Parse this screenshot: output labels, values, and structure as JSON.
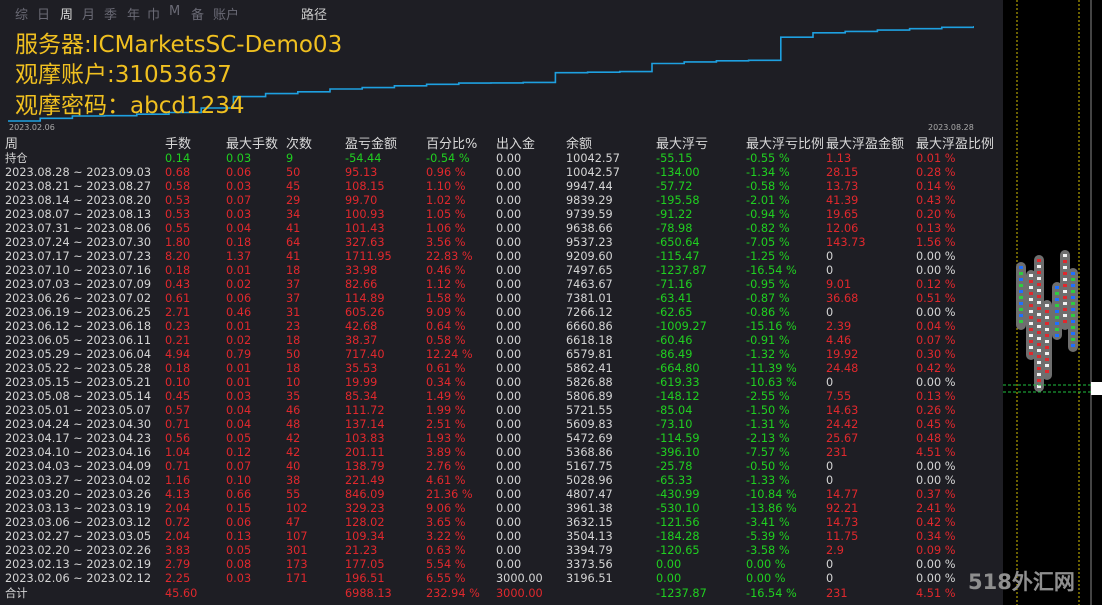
{
  "tabs": [
    "综",
    "日",
    "周",
    "月",
    "季",
    "年",
    "巾",
    "M",
    "备",
    "账户"
  ],
  "tab_active_index": 2,
  "path_label": "路径",
  "server_line": "服务器:ICMarketsSC-Demo03",
  "account_line": " 观摩账户:31053637",
  "password_line": "观摩密码：abcd1234",
  "chart_start_date": "2023.02.06",
  "chart_end_date": "2023.08.28",
  "equity_curve_color": "#1ea0e0",
  "headers": [
    "周",
    "手数",
    "最大手数",
    "次数",
    "盈亏金额",
    "百分比%",
    "出入金",
    "余额",
    "最大浮亏",
    "最大浮亏比例",
    "最大浮盈金额",
    "最大浮盈比例"
  ],
  "holding": {
    "label": "持仓",
    "cells": [
      "0.14",
      "0.03",
      "9",
      "-54.44",
      "-0.54 %",
      "0.00",
      "10042.57",
      "-55.15",
      "-0.55 %",
      "1.13",
      "0.01 %"
    ]
  },
  "rows": [
    [
      "2023.08.28 ~ 2023.09.03",
      "0.68",
      "0.06",
      "50",
      "95.13",
      "0.96 %",
      "0.00",
      "10042.57",
      "-134.00",
      "-1.34 %",
      "28.15",
      "0.28 %"
    ],
    [
      "2023.08.21 ~ 2023.08.27",
      "0.58",
      "0.03",
      "45",
      "108.15",
      "1.10 %",
      "0.00",
      "9947.44",
      "-57.72",
      "-0.58 %",
      "13.73",
      "0.14 %"
    ],
    [
      "2023.08.14 ~ 2023.08.20",
      "0.53",
      "0.07",
      "29",
      "99.70",
      "1.02 %",
      "0.00",
      "9839.29",
      "-195.58",
      "-2.01 %",
      "41.39",
      "0.43 %"
    ],
    [
      "2023.08.07 ~ 2023.08.13",
      "0.53",
      "0.03",
      "34",
      "100.93",
      "1.05 %",
      "0.00",
      "9739.59",
      "-91.22",
      "-0.94 %",
      "19.65",
      "0.20 %"
    ],
    [
      "2023.07.31 ~ 2023.08.06",
      "0.55",
      "0.04",
      "41",
      "101.43",
      "1.06 %",
      "0.00",
      "9638.66",
      "-78.98",
      "-0.82 %",
      "12.06",
      "0.13 %"
    ],
    [
      "2023.07.24 ~ 2023.07.30",
      "1.80",
      "0.18",
      "64",
      "327.63",
      "3.56 %",
      "0.00",
      "9537.23",
      "-650.64",
      "-7.05 %",
      "143.73",
      "1.56 %"
    ],
    [
      "2023.07.17 ~ 2023.07.23",
      "8.20",
      "1.37",
      "41",
      "1711.95",
      "22.83 %",
      "0.00",
      "9209.60",
      "-115.47",
      "-1.25 %",
      "0",
      "0.00 %"
    ],
    [
      "2023.07.10 ~ 2023.07.16",
      "0.18",
      "0.01",
      "18",
      "33.98",
      "0.46 %",
      "0.00",
      "7497.65",
      "-1237.87",
      "-16.54 %",
      "0",
      "0.00 %"
    ],
    [
      "2023.07.03 ~ 2023.07.09",
      "0.43",
      "0.02",
      "37",
      "82.66",
      "1.12 %",
      "0.00",
      "7463.67",
      "-71.16",
      "-0.95 %",
      "9.01",
      "0.12 %"
    ],
    [
      "2023.06.26 ~ 2023.07.02",
      "0.61",
      "0.06",
      "37",
      "114.89",
      "1.58 %",
      "0.00",
      "7381.01",
      "-63.41",
      "-0.87 %",
      "36.68",
      "0.51 %"
    ],
    [
      "2023.06.19 ~ 2023.06.25",
      "2.71",
      "0.46",
      "31",
      "605.26",
      "9.09 %",
      "0.00",
      "7266.12",
      "-62.65",
      "-0.86 %",
      "0",
      "0.00 %"
    ],
    [
      "2023.06.12 ~ 2023.06.18",
      "0.23",
      "0.01",
      "23",
      "42.68",
      "0.64 %",
      "0.00",
      "6660.86",
      "-1009.27",
      "-15.16 %",
      "2.39",
      "0.04 %"
    ],
    [
      "2023.06.05 ~ 2023.06.11",
      "0.21",
      "0.02",
      "18",
      "38.37",
      "0.58 %",
      "0.00",
      "6618.18",
      "-60.46",
      "-0.91 %",
      "4.46",
      "0.07 %"
    ],
    [
      "2023.05.29 ~ 2023.06.04",
      "4.94",
      "0.79",
      "50",
      "717.40",
      "12.24 %",
      "0.00",
      "6579.81",
      "-86.49",
      "-1.32 %",
      "19.92",
      "0.30 %"
    ],
    [
      "2023.05.22 ~ 2023.05.28",
      "0.18",
      "0.01",
      "18",
      "35.53",
      "0.61 %",
      "0.00",
      "5862.41",
      "-664.80",
      "-11.39 %",
      "24.48",
      "0.42 %"
    ],
    [
      "2023.05.15 ~ 2023.05.21",
      "0.10",
      "0.01",
      "10",
      "19.99",
      "0.34 %",
      "0.00",
      "5826.88",
      "-619.33",
      "-10.63 %",
      "0",
      "0.00 %"
    ],
    [
      "2023.05.08 ~ 2023.05.14",
      "0.45",
      "0.03",
      "35",
      "85.34",
      "1.49 %",
      "0.00",
      "5806.89",
      "-148.12",
      "-2.55 %",
      "7.55",
      "0.13 %"
    ],
    [
      "2023.05.01 ~ 2023.05.07",
      "0.57",
      "0.04",
      "46",
      "111.72",
      "1.99 %",
      "0.00",
      "5721.55",
      "-85.04",
      "-1.50 %",
      "14.63",
      "0.26 %"
    ],
    [
      "2023.04.24 ~ 2023.04.30",
      "0.71",
      "0.04",
      "48",
      "137.14",
      "2.51 %",
      "0.00",
      "5609.83",
      "-73.10",
      "-1.31 %",
      "24.42",
      "0.45 %"
    ],
    [
      "2023.04.17 ~ 2023.04.23",
      "0.56",
      "0.05",
      "42",
      "103.83",
      "1.93 %",
      "0.00",
      "5472.69",
      "-114.59",
      "-2.13 %",
      "25.67",
      "0.48 %"
    ],
    [
      "2023.04.10 ~ 2023.04.16",
      "1.04",
      "0.12",
      "42",
      "201.11",
      "3.89 %",
      "0.00",
      "5368.86",
      "-396.10",
      "-7.57 %",
      "231",
      "4.51 %"
    ],
    [
      "2023.04.03 ~ 2023.04.09",
      "0.71",
      "0.07",
      "40",
      "138.79",
      "2.76 %",
      "0.00",
      "5167.75",
      "-25.78",
      "-0.50 %",
      "0",
      "0.00 %"
    ],
    [
      "2023.03.27 ~ 2023.04.02",
      "1.16",
      "0.10",
      "38",
      "221.49",
      "4.61 %",
      "0.00",
      "5028.96",
      "-65.33",
      "-1.33 %",
      "0",
      "0.00 %"
    ],
    [
      "2023.03.20 ~ 2023.03.26",
      "4.13",
      "0.66",
      "55",
      "846.09",
      "21.36 %",
      "0.00",
      "4807.47",
      "-430.99",
      "-10.84 %",
      "14.77",
      "0.37 %"
    ],
    [
      "2023.03.13 ~ 2023.03.19",
      "2.04",
      "0.15",
      "102",
      "329.23",
      "9.06 %",
      "0.00",
      "3961.38",
      "-530.10",
      "-13.86 %",
      "92.21",
      "2.41 %"
    ],
    [
      "2023.03.06 ~ 2023.03.12",
      "0.72",
      "0.06",
      "47",
      "128.02",
      "3.65 %",
      "0.00",
      "3632.15",
      "-121.56",
      "-3.41 %",
      "14.73",
      "0.42 %"
    ],
    [
      "2023.02.27 ~ 2023.03.05",
      "2.04",
      "0.13",
      "107",
      "109.34",
      "3.22 %",
      "0.00",
      "3504.13",
      "-184.28",
      "-5.39 %",
      "11.75",
      "0.34 %"
    ],
    [
      "2023.02.20 ~ 2023.02.26",
      "3.83",
      "0.05",
      "301",
      "21.23",
      "0.63 %",
      "0.00",
      "3394.79",
      "-120.65",
      "-3.58 %",
      "2.9",
      "0.09 %"
    ],
    [
      "2023.02.13 ~ 2023.02.19",
      "2.79",
      "0.08",
      "173",
      "177.05",
      "5.54 %",
      "0.00",
      "3373.56",
      "0.00",
      "0.00 %",
      "0",
      "0.00 %"
    ],
    [
      "2023.02.06 ~ 2023.02.12",
      "2.25",
      "0.03",
      "171",
      "196.51",
      "6.55 %",
      "3000.00",
      "3196.51",
      "0.00",
      "0.00 %",
      "0",
      "0.00 %"
    ]
  ],
  "total": {
    "label": "合计",
    "cells": [
      "45.60",
      "",
      "",
      "6988.13",
      "232.94 %",
      "3000.00",
      "",
      "-1237.87",
      "-16.54 %",
      "231",
      "4.51 %"
    ]
  },
  "watermark": "518外汇网"
}
